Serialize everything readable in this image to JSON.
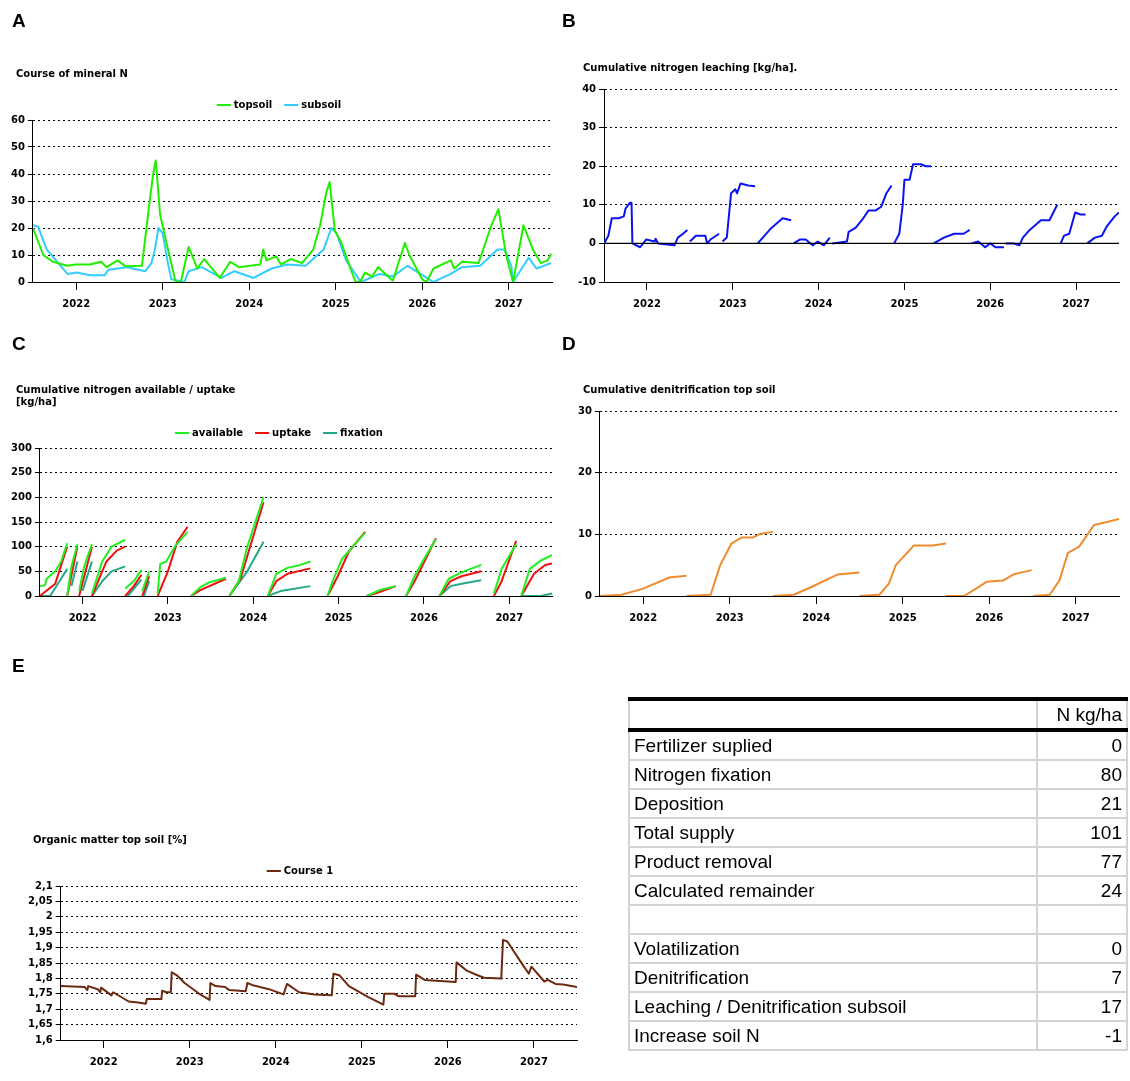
{
  "chart_data": [
    {
      "type": "line",
      "title": "Course of mineral N",
      "annotations": [
        "A"
      ],
      "marker": "none",
      "grid": "y",
      "legend": "top",
      "xlim": [
        2022,
        2028
      ],
      "xticks": [
        {
          "value": 2022.5,
          "label": "2022"
        },
        {
          "value": 2023.5,
          "label": "2023"
        },
        {
          "value": 2024.5,
          "label": "2024"
        },
        {
          "value": 2025.5,
          "label": "2025"
        },
        {
          "value": 2026.5,
          "label": "2026"
        },
        {
          "value": 2027.5,
          "label": "2027"
        }
      ],
      "ylim": [
        0,
        60
      ],
      "yticks": [
        0,
        10,
        20,
        30,
        40,
        50,
        60
      ],
      "series": [
        {
          "name": "topsoil",
          "color": "#22ee00",
          "x": [
            2022.0,
            2022.12,
            2022.23,
            2022.4,
            2022.49,
            2022.66,
            2022.79,
            2022.85,
            2022.98,
            2023.07,
            2023.26,
            2023.35,
            2023.39,
            2023.42,
            2023.47,
            2023.54,
            2023.65,
            2023.71,
            2023.8,
            2023.9,
            2023.98,
            2024.16,
            2024.28,
            2024.38,
            2024.63,
            2024.66,
            2024.7,
            2024.81,
            2024.87,
            2024.98,
            2025.11,
            2025.24,
            2025.32,
            2025.39,
            2025.43,
            2025.49,
            2025.56,
            2025.67,
            2025.73,
            2025.78,
            2025.84,
            2025.92,
            2025.99,
            2026.16,
            2026.3,
            2026.35,
            2026.5,
            2026.55,
            2026.63,
            2026.83,
            2026.87,
            2026.96,
            2027.15,
            2027.3,
            2027.38,
            2027.47,
            2027.55,
            2027.67,
            2027.78,
            2027.87,
            2027.95,
            2027.99
          ],
          "values": [
            20,
            10,
            7.5,
            6,
            6.5,
            6.5,
            7.5,
            5.5,
            8,
            5.8,
            6,
            30,
            40,
            45,
            25,
            15,
            0,
            0,
            13,
            5,
            8.5,
            1.5,
            7.5,
            5.5,
            6.5,
            12,
            8,
            9.5,
            6.5,
            8.5,
            7,
            12,
            21,
            33,
            37,
            19,
            15,
            5,
            0,
            0,
            3.5,
            2,
            5.5,
            0.5,
            14.5,
            10,
            1,
            0,
            5,
            8,
            5,
            7.5,
            7,
            21,
            27,
            10,
            0,
            21,
            12,
            7,
            8,
            10.5
          ]
        },
        {
          "name": "subsoil",
          "color": "#33ccff",
          "x": [
            2022.0,
            2022.06,
            2022.16,
            2022.4,
            2022.51,
            2022.66,
            2022.83,
            2022.87,
            2023.09,
            2023.3,
            2023.37,
            2023.41,
            2023.45,
            2023.5,
            2023.56,
            2023.6,
            2023.75,
            2023.8,
            2023.95,
            2024.18,
            2024.33,
            2024.55,
            2024.76,
            2024.94,
            2025.15,
            2025.36,
            2025.45,
            2025.51,
            2025.62,
            2025.79,
            2026.01,
            2026.16,
            2026.33,
            2026.48,
            2026.63,
            2026.83,
            2026.96,
            2027.17,
            2027.37,
            2027.45,
            2027.53,
            2027.55,
            2027.73,
            2027.82,
            2027.99
          ],
          "values": [
            21,
            20.5,
            12,
            3,
            3.5,
            2.5,
            2.5,
            4.5,
            5.5,
            4,
            7,
            12,
            20,
            18,
            7,
            1,
            0,
            4,
            5.5,
            1.5,
            4,
            1.5,
            5,
            6.5,
            6,
            12,
            20,
            18,
            8,
            0,
            3,
            2,
            6,
            3,
            0,
            3,
            5.5,
            6,
            12,
            12,
            6,
            0,
            9,
            5,
            7
          ]
        }
      ]
    },
    {
      "type": "line",
      "title": "Cumulative nitrogen leaching [kg/ha].",
      "annotations": [
        "B"
      ],
      "marker": "none",
      "grid": "y",
      "xlim": [
        2022,
        2028
      ],
      "xticks": [
        {
          "value": 2022.5,
          "label": "2022"
        },
        {
          "value": 2023.5,
          "label": "2023"
        },
        {
          "value": 2024.5,
          "label": "2024"
        },
        {
          "value": 2025.5,
          "label": "2025"
        },
        {
          "value": 2026.5,
          "label": "2026"
        },
        {
          "value": 2027.5,
          "label": "2027"
        }
      ],
      "ylim": [
        -10,
        40
      ],
      "yticks": [
        -10,
        0,
        10,
        20,
        30,
        40
      ],
      "ref_lines": [
        {
          "axis": "y",
          "value": 0,
          "color": "#000000"
        }
      ],
      "series": [
        {
          "color": "#0a14f0",
          "x": [
            2022.0,
            2022.05,
            2022.09,
            2022.17,
            2022.23,
            2022.25,
            2022.3,
            2022.32,
            2022.33,
            2022.42,
            2022.49,
            2022.59,
            2022.6,
            2022.63,
            2022.82,
            2022.86,
            2022.92,
            2022.97,
            null,
            2023.0,
            2023.07,
            2023.18,
            2023.2,
            2023.24,
            2023.34,
            null,
            2023.38,
            2023.43,
            2023.48,
            2023.53,
            2023.55,
            2023.59,
            2023.68,
            2023.76,
            null,
            2023.79,
            2023.85,
            2023.95,
            2024.08,
            2024.18,
            null,
            2024.21,
            2024.28,
            2024.35,
            2024.43,
            2024.49,
            2024.56,
            2024.63,
            null,
            2024.66,
            2024.83,
            2024.85,
            2024.93,
            2025.02,
            2025.08,
            2025.16,
            2025.23,
            2025.29,
            2025.35,
            null,
            2025.38,
            2025.44,
            2025.48,
            2025.5,
            2025.56,
            2025.6,
            2025.69,
            2025.75,
            2025.81,
            null,
            2025.84,
            2025.96,
            2026.08,
            2026.19,
            2026.26,
            null,
            2026.28,
            2026.36,
            2026.44,
            2026.5,
            2026.56,
            2026.66,
            null,
            2026.68,
            2026.77,
            2026.84,
            2026.88,
            2026.96,
            2027.09,
            2027.19,
            2027.28,
            null,
            2027.32,
            2027.36,
            2027.42,
            2027.49,
            2027.55,
            2027.61,
            null,
            2027.63,
            2027.72,
            2027.8,
            2027.86,
            2027.95,
            2028.0
          ],
          "values": [
            0,
            2,
            6.5,
            6.5,
            7,
            9,
            10.5,
            10.5,
            0,
            -1,
            1,
            0.5,
            1.2,
            0,
            -0.5,
            1.5,
            2.5,
            3.5,
            null,
            0.5,
            2,
            2,
            0,
            1,
            2.5,
            null,
            0.5,
            1.5,
            13,
            14,
            13,
            15.5,
            15,
            14.8,
            null,
            0,
            1.5,
            4,
            6.5,
            6,
            null,
            0,
            1,
            1,
            -0.5,
            0.5,
            -0.5,
            1.5,
            null,
            0,
            0.5,
            3,
            4,
            6.5,
            8.5,
            8.5,
            9.5,
            13,
            15,
            null,
            0,
            2.5,
            10,
            16.5,
            16.5,
            20.5,
            20.5,
            20,
            20,
            null,
            0,
            1.5,
            2.5,
            2.5,
            3.5,
            null,
            0,
            0.5,
            -1,
            0,
            -1,
            -1,
            null,
            0,
            0,
            -0.5,
            1.5,
            3.5,
            6,
            6,
            10,
            null,
            0,
            2,
            2.5,
            8,
            7.5,
            7.5,
            null,
            0,
            1.5,
            2,
            4.5,
            7,
            8
          ]
        }
      ]
    },
    {
      "type": "line",
      "title": "Cumulative nitrogen available / uptake [kg/ha]",
      "annotations": [
        "C"
      ],
      "marker": "none",
      "grid": "y",
      "legend": "top",
      "xlim": [
        2022,
        2028
      ],
      "xticks": [
        {
          "value": 2022.5,
          "label": "2022"
        },
        {
          "value": 2023.5,
          "label": "2023"
        },
        {
          "value": 2024.5,
          "label": "2024"
        },
        {
          "value": 2025.5,
          "label": "2025"
        },
        {
          "value": 2026.5,
          "label": "2026"
        },
        {
          "value": 2027.5,
          "label": "2027"
        }
      ],
      "ylim": [
        0,
        300
      ],
      "yticks": [
        0,
        50,
        100,
        150,
        200,
        250,
        300
      ],
      "series": [
        {
          "name": "available",
          "color": "#22ee22",
          "x": [
            2022.0,
            2022.06,
            2022.08,
            2022.18,
            2022.25,
            2022.32,
            null,
            2022.32,
            2022.37,
            2022.44,
            null,
            2022.46,
            2022.52,
            2022.61,
            null,
            2022.61,
            2022.73,
            2022.84,
            2023.0,
            null,
            2023.0,
            2023.1,
            2023.19,
            null,
            2023.2,
            2023.28,
            null,
            2023.38,
            2023.41,
            2023.48,
            2023.58,
            2023.73,
            null,
            2023.77,
            2023.88,
            2023.99,
            2024.18,
            null,
            2024.22,
            2024.33,
            2024.43,
            2024.62,
            null,
            2024.67,
            2024.77,
            2024.9,
            2025.03,
            2025.17,
            null,
            2025.37,
            2025.43,
            2025.54,
            2025.69,
            2025.81,
            null,
            2025.83,
            2025.98,
            2026.17,
            null,
            2026.29,
            2026.39,
            2026.49,
            2026.64,
            null,
            2026.68,
            2026.79,
            2026.94,
            2027.17,
            null,
            2027.32,
            2027.41,
            2027.58,
            null,
            2027.64,
            2027.74,
            2027.87,
            2028.0
          ],
          "values": [
            20,
            22,
            35,
            50,
            70,
            107,
            null,
            0,
            60,
            105,
            null,
            10,
            60,
            105,
            null,
            5,
            70,
            100,
            114,
            null,
            15,
            30,
            53,
            null,
            10,
            50,
            null,
            5,
            65,
            70,
            100,
            130,
            null,
            0,
            18,
            28,
            37,
            null,
            0,
            30,
            100,
            200,
            null,
            0,
            45,
            57,
            62,
            70,
            null,
            0,
            30,
            75,
            105,
            128,
            null,
            0,
            12,
            20,
            null,
            0,
            40,
            72,
            115,
            null,
            0,
            35,
            48,
            63,
            null,
            5,
            55,
            105,
            null,
            0,
            55,
            72,
            83
          ]
        },
        {
          "name": "uptake",
          "color": "#ee1111",
          "x": [
            2022.0,
            2022.18,
            2022.32,
            null,
            2022.32,
            2022.44,
            null,
            2022.46,
            2022.61,
            null,
            2022.61,
            2022.78,
            2022.9,
            2023.0,
            null,
            2023.0,
            2023.1,
            2023.19,
            null,
            2023.2,
            2023.28,
            null,
            2023.38,
            2023.5,
            2023.61,
            2023.73,
            null,
            2023.77,
            2023.88,
            2024.18,
            null,
            2024.22,
            2024.35,
            2024.62,
            null,
            2024.67,
            2024.77,
            2024.9,
            2025.17,
            null,
            2025.37,
            2025.49,
            2025.62,
            2025.81,
            null,
            2025.83,
            2025.98,
            2026.17,
            null,
            2026.29,
            2026.39,
            2026.64,
            null,
            2026.68,
            2026.81,
            2026.94,
            2027.17,
            null,
            2027.32,
            2027.41,
            2027.58,
            null,
            2027.64,
            2027.79,
            2027.92,
            2028.0
          ],
          "values": [
            0,
            25,
            100,
            null,
            0,
            100,
            null,
            0,
            100,
            null,
            0,
            70,
            92,
            100,
            null,
            0,
            20,
            43,
            null,
            0,
            40,
            null,
            0,
            50,
            110,
            140,
            null,
            0,
            12,
            35,
            null,
            0,
            35,
            190,
            null,
            0,
            30,
            45,
            56,
            null,
            0,
            40,
            90,
            130,
            null,
            0,
            8,
            20,
            null,
            0,
            30,
            117,
            null,
            0,
            30,
            40,
            50,
            null,
            0,
            30,
            112,
            null,
            0,
            45,
            63,
            66
          ]
        },
        {
          "name": "fixation",
          "color": "#22aa88",
          "x": [
            2022.0,
            2022.12,
            2022.23,
            2022.32,
            null,
            2022.37,
            2022.44,
            null,
            2022.5,
            2022.61,
            null,
            2022.61,
            2022.73,
            2022.84,
            2023.0,
            null,
            2023.03,
            2023.19,
            null,
            2023.22,
            2023.28,
            null,
            2024.22,
            2024.43,
            2024.62,
            null,
            2024.67,
            2024.82,
            2025.17,
            null,
            2026.68,
            2026.81,
            2026.94,
            2027.17,
            null,
            2027.64,
            2027.87,
            2028.0
          ],
          "values": [
            0,
            0,
            30,
            55,
            null,
            20,
            70,
            null,
            10,
            70,
            null,
            0,
            30,
            50,
            60,
            null,
            0,
            33,
            null,
            0,
            30,
            null,
            0,
            50,
            110,
            null,
            0,
            10,
            20,
            null,
            0,
            20,
            25,
            32,
            null,
            0,
            0,
            5
          ]
        }
      ]
    },
    {
      "type": "line",
      "title": "Cumulative denitrification top soil",
      "annotations": [
        "D"
      ],
      "marker": "none",
      "grid": "y",
      "xlim": [
        2022,
        2028
      ],
      "xticks": [
        {
          "value": 2022.5,
          "label": "2022"
        },
        {
          "value": 2023.5,
          "label": "2023"
        },
        {
          "value": 2024.5,
          "label": "2024"
        },
        {
          "value": 2025.5,
          "label": "2025"
        },
        {
          "value": 2026.5,
          "label": "2026"
        },
        {
          "value": 2027.5,
          "label": "2027"
        }
      ],
      "ylim": [
        0,
        30
      ],
      "yticks": [
        0,
        10,
        20,
        30
      ],
      "series": [
        {
          "color": "#f08c30",
          "x": [
            2022.0,
            2022.25,
            2022.5,
            2022.8,
            2023.0,
            null,
            2023.0,
            2023.28,
            2023.39,
            2023.52,
            2023.64,
            2023.77,
            2023.86,
            2024.0,
            null,
            2024.0,
            2024.24,
            2024.45,
            2024.75,
            2025.0,
            null,
            2025.0,
            2025.23,
            2025.34,
            2025.42,
            2025.63,
            2025.85,
            2026.0,
            null,
            2026.0,
            2026.21,
            2026.47,
            2026.66,
            2026.78,
            2026.99,
            null,
            2027.01,
            2027.2,
            2027.31,
            2027.41,
            2027.54,
            2027.71,
            2027.86,
            2028.0
          ],
          "values": [
            0,
            0.2,
            1.2,
            3,
            3.3,
            null,
            0,
            0.2,
            5,
            8.5,
            9.5,
            9.5,
            10.1,
            10.4,
            null,
            0,
            0.2,
            1.5,
            3.5,
            3.8,
            null,
            0,
            0.2,
            2,
            5,
            8.2,
            8.2,
            8.5,
            null,
            0,
            0,
            2.3,
            2.5,
            3.5,
            4.2,
            null,
            0,
            0.2,
            2.5,
            7,
            8,
            11.5,
            12,
            12.5
          ]
        }
      ]
    },
    {
      "type": "line",
      "title": "Organic matter top soil [%]",
      "annotations": [
        "E"
      ],
      "marker": "none",
      "grid": "y",
      "legend": "top",
      "xlim": [
        2022,
        2028
      ],
      "xticks": [
        {
          "value": 2022.5,
          "label": "2022"
        },
        {
          "value": 2023.5,
          "label": "2023"
        },
        {
          "value": 2024.5,
          "label": "2024"
        },
        {
          "value": 2025.5,
          "label": "2025"
        },
        {
          "value": 2026.5,
          "label": "2026"
        },
        {
          "value": 2027.5,
          "label": "2027"
        }
      ],
      "ylim": [
        1.6,
        2.1
      ],
      "yticks": [
        {
          "value": 1.6,
          "label": "1,6"
        },
        {
          "value": 1.65,
          "label": "1,65"
        },
        {
          "value": 1.7,
          "label": "1,7"
        },
        {
          "value": 1.75,
          "label": "1,75"
        },
        {
          "value": 1.8,
          "label": "1,8"
        },
        {
          "value": 1.85,
          "label": "1,85"
        },
        {
          "value": 1.9,
          "label": "1,9"
        },
        {
          "value": 1.95,
          "label": "1,95"
        },
        {
          "value": 2,
          "label": "2"
        },
        {
          "value": 2.05,
          "label": "2,05"
        },
        {
          "value": 2.1,
          "label": "2,1"
        }
      ],
      "series": [
        {
          "name": "Course 1",
          "color": "#6b2a10",
          "x": [
            2022.0,
            2022.28,
            2022.31,
            2022.32,
            2022.43,
            2022.46,
            2022.47,
            2022.59,
            2022.61,
            2022.79,
            2022.9,
            2022.99,
            2023.0,
            2023.17,
            2023.18,
            2023.23,
            2023.28,
            2023.29,
            2023.35,
            2023.44,
            2023.61,
            2023.73,
            2023.74,
            2023.8,
            2023.91,
            2023.96,
            2024.15,
            2024.17,
            2024.23,
            2024.42,
            2024.59,
            2024.63,
            2024.77,
            2024.95,
            2025.15,
            2025.17,
            2025.24,
            2025.35,
            2025.57,
            2025.75,
            2025.76,
            2025.88,
            2025.93,
            2026.12,
            2026.13,
            2026.23,
            2026.59,
            2026.6,
            2026.72,
            2026.83,
            2026.92,
            2027.12,
            2027.14,
            2027.19,
            2027.35,
            2027.44,
            2027.47,
            2027.62,
            2027.66,
            2027.75,
            2027.84,
            2028.0
          ],
          "values": [
            1.775,
            1.772,
            1.762,
            1.775,
            1.765,
            1.755,
            1.77,
            1.745,
            1.755,
            1.725,
            1.722,
            1.718,
            1.733,
            1.733,
            1.76,
            1.755,
            1.755,
            1.82,
            1.81,
            1.785,
            1.75,
            1.73,
            1.785,
            1.775,
            1.772,
            1.762,
            1.758,
            1.785,
            1.778,
            1.765,
            1.748,
            1.782,
            1.755,
            1.748,
            1.745,
            1.815,
            1.81,
            1.775,
            1.74,
            1.715,
            1.75,
            1.75,
            1.742,
            1.742,
            1.812,
            1.795,
            1.788,
            1.852,
            1.825,
            1.812,
            1.802,
            1.8,
            1.925,
            1.92,
            1.852,
            1.815,
            1.838,
            1.79,
            1.795,
            1.782,
            1.78,
            1.772
          ]
        }
      ]
    },
    {
      "type": "other",
      "annotations": [
        "N kg/ha"
      ],
      "categories": [
        "Fertilizer suplied",
        "Nitrogen fixation",
        "Deposition",
        "Total supply",
        "Product removal",
        "Calculated remainder",
        null,
        "Volatilization",
        "Denitrification",
        "Leaching / Denitrification subsoil",
        "Increase soil N"
      ],
      "value_labels": [
        "0",
        "80",
        "21",
        "101",
        "77",
        "24",
        null,
        "0",
        "7",
        "17",
        "-1"
      ]
    }
  ]
}
